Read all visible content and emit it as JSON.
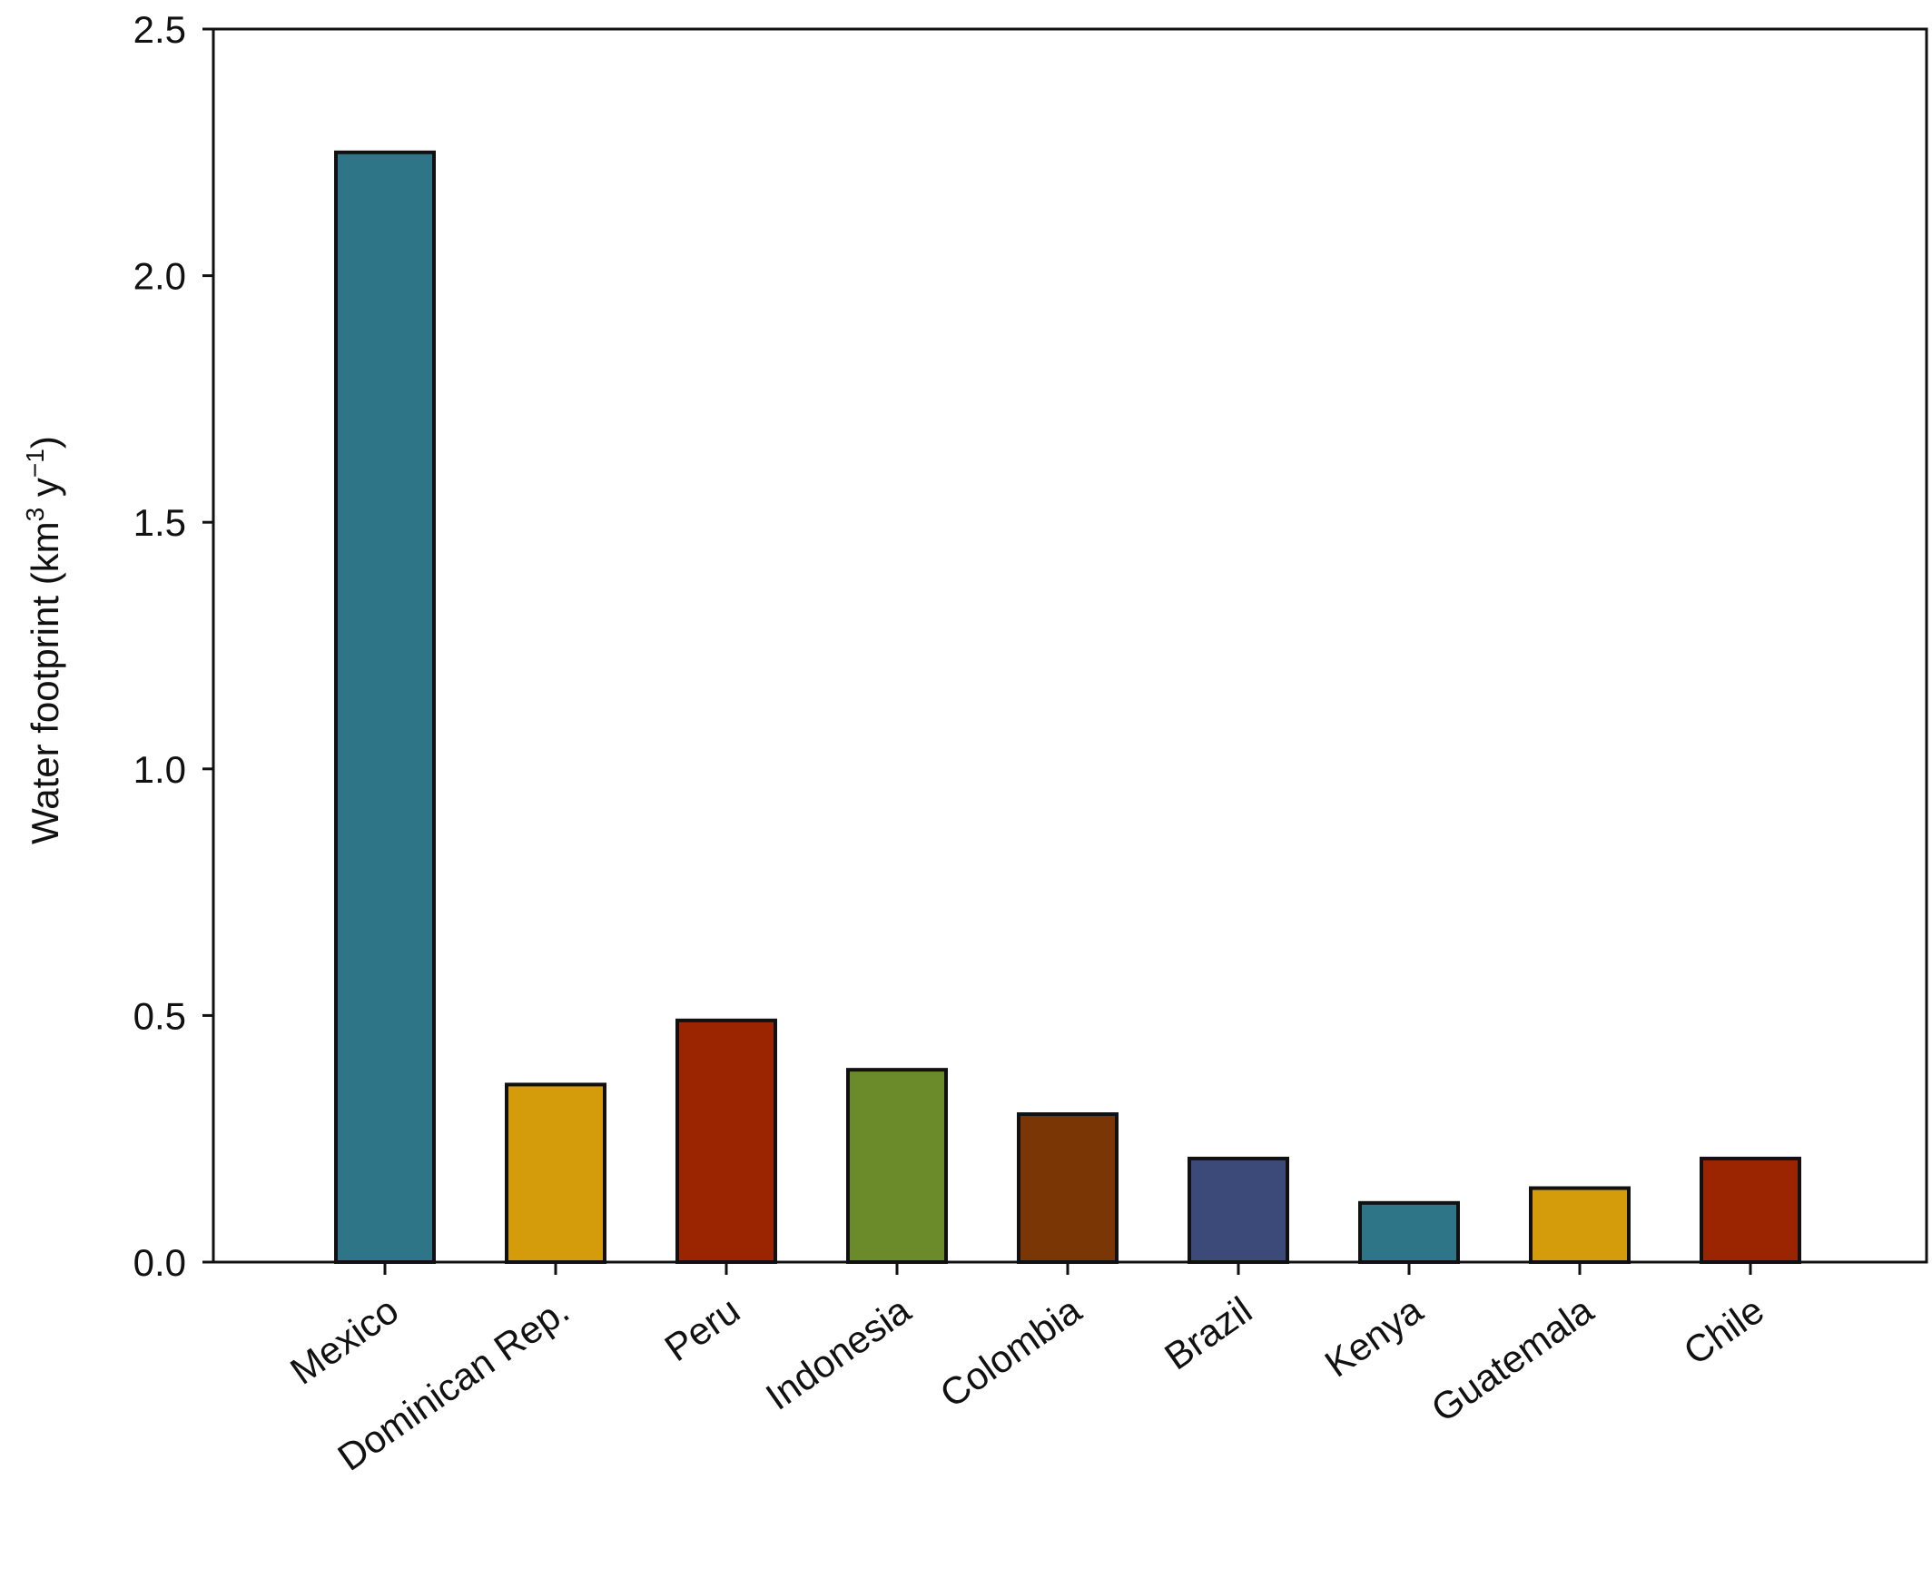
{
  "chart_data": {
    "type": "bar",
    "categories": [
      "Mexico",
      "Dominican Rep.",
      "Peru",
      "Indonesia",
      "Colombia",
      "Brazil",
      "Kenya",
      "Guatemala",
      "Chile"
    ],
    "values": [
      2.25,
      0.36,
      0.49,
      0.39,
      0.3,
      0.21,
      0.12,
      0.15,
      0.21
    ],
    "colors": [
      "#2f7588",
      "#d49c0a",
      "#9b2500",
      "#6b8a2a",
      "#7a3605",
      "#3c4a7a",
      "#2f7588",
      "#d49c0a",
      "#9b2500"
    ],
    "title": "",
    "xlabel": "",
    "ylabel": {
      "prefix": "Water footprint (km",
      "sup1": "3",
      "middle": " y",
      "sup2": "−1",
      "suffix": ")"
    },
    "ylim": [
      0,
      2.5
    ],
    "yticks": [
      "0.0",
      "0.5",
      "1.0",
      "1.5",
      "2.0",
      "2.5"
    ],
    "grid": false,
    "legend": "none"
  }
}
